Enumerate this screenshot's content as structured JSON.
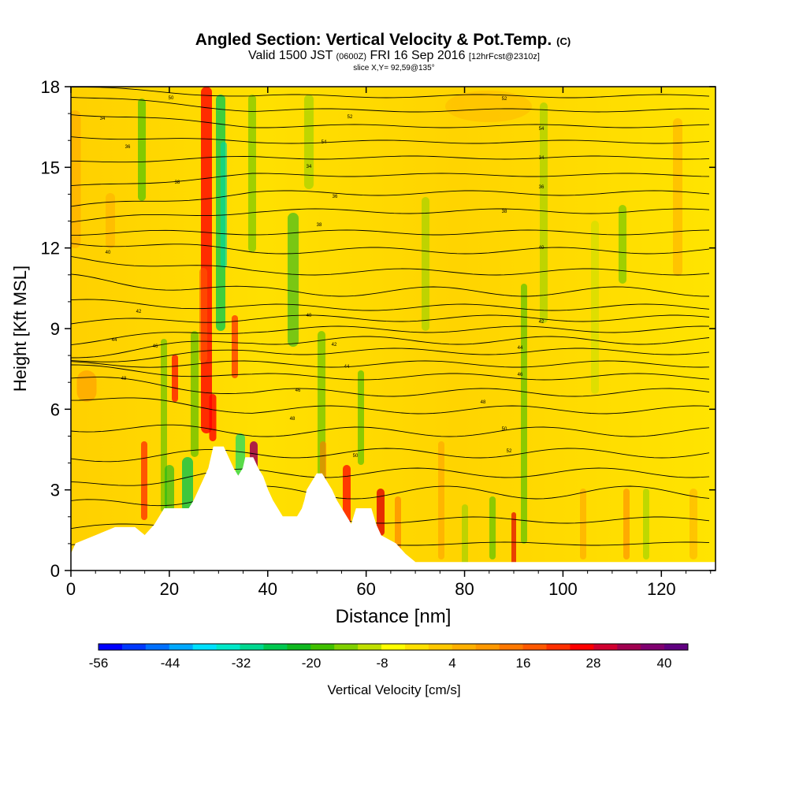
{
  "chart_data": {
    "type": "heatmap",
    "title": "Angled Section: Vertical Velocity & Pot.Temp.",
    "title_mark": "(C)",
    "subtitle_parts": [
      "Valid 1500 JST ",
      "(0600Z)",
      " FRI 16 Sep 2016 ",
      "[12hrFcst@2310z]"
    ],
    "subtitle2": "slice X,Y= 92,59@135°",
    "xlabel": "Distance [nm]",
    "ylabel": "Height [Kft MSL]",
    "xlim": [
      0,
      131
    ],
    "ylim": [
      0,
      18
    ],
    "x_ticks": [
      0,
      20,
      40,
      60,
      80,
      100,
      120
    ],
    "y_ticks": [
      0,
      3,
      6,
      9,
      12,
      15,
      18
    ],
    "colorbar": {
      "label": "Vertical Velocity [cm/s]",
      "tick_labels": [
        "-56",
        "-44",
        "-32",
        "-20",
        "-8",
        "4",
        "16",
        "28",
        "40"
      ],
      "colors": [
        "#0000ff",
        "#0038ff",
        "#0070ff",
        "#00a8ff",
        "#00e0ff",
        "#00e8c8",
        "#00d890",
        "#00c850",
        "#10b820",
        "#40c000",
        "#80d000",
        "#c0e000",
        "#ffff00",
        "#ffe000",
        "#ffc800",
        "#ffb000",
        "#ff9800",
        "#ff7800",
        "#ff5800",
        "#ff3000",
        "#ff0000",
        "#d00030",
        "#a00050",
        "#800070",
        "#600080"
      ]
    },
    "contour_labels": [
      "34",
      "36",
      "38",
      "40",
      "42",
      "44",
      "46",
      "48",
      "50",
      "52",
      "54"
    ],
    "terrain_heights_kft": [
      [
        0,
        0.6
      ],
      [
        1,
        1.0
      ],
      [
        5,
        1.3
      ],
      [
        9,
        1.6
      ],
      [
        13,
        1.6
      ],
      [
        15,
        1.3
      ],
      [
        17,
        1.7
      ],
      [
        18,
        2.0
      ],
      [
        19,
        2.3
      ],
      [
        24,
        2.3
      ],
      [
        25,
        2.6
      ],
      [
        26,
        3.0
      ],
      [
        27,
        3.4
      ],
      [
        28,
        3.8
      ],
      [
        28.5,
        4.2
      ],
      [
        29,
        4.6
      ],
      [
        31,
        4.6
      ],
      [
        32,
        4.2
      ],
      [
        33,
        3.8
      ],
      [
        34,
        3.5
      ],
      [
        35,
        3.8
      ],
      [
        35.5,
        4.2
      ],
      [
        37,
        4.2
      ],
      [
        38,
        3.8
      ],
      [
        39,
        3.5
      ],
      [
        40,
        3.0
      ],
      [
        41,
        2.6
      ],
      [
        42,
        2.3
      ],
      [
        43,
        2.0
      ],
      [
        46,
        2.0
      ],
      [
        47,
        2.3
      ],
      [
        47.5,
        2.6
      ],
      [
        48,
        3.0
      ],
      [
        49,
        3.3
      ],
      [
        50,
        3.6
      ],
      [
        51,
        3.6
      ],
      [
        52,
        3.3
      ],
      [
        53,
        3.0
      ],
      [
        54,
        2.6
      ],
      [
        55,
        2.3
      ],
      [
        56,
        2.0
      ],
      [
        57,
        1.7
      ],
      [
        58,
        2.3
      ],
      [
        61,
        2.3
      ],
      [
        62,
        1.7
      ],
      [
        63,
        1.3
      ],
      [
        66,
        1.0
      ],
      [
        68,
        0.6
      ],
      [
        70,
        0.3
      ],
      [
        131,
        0.3
      ]
    ]
  }
}
